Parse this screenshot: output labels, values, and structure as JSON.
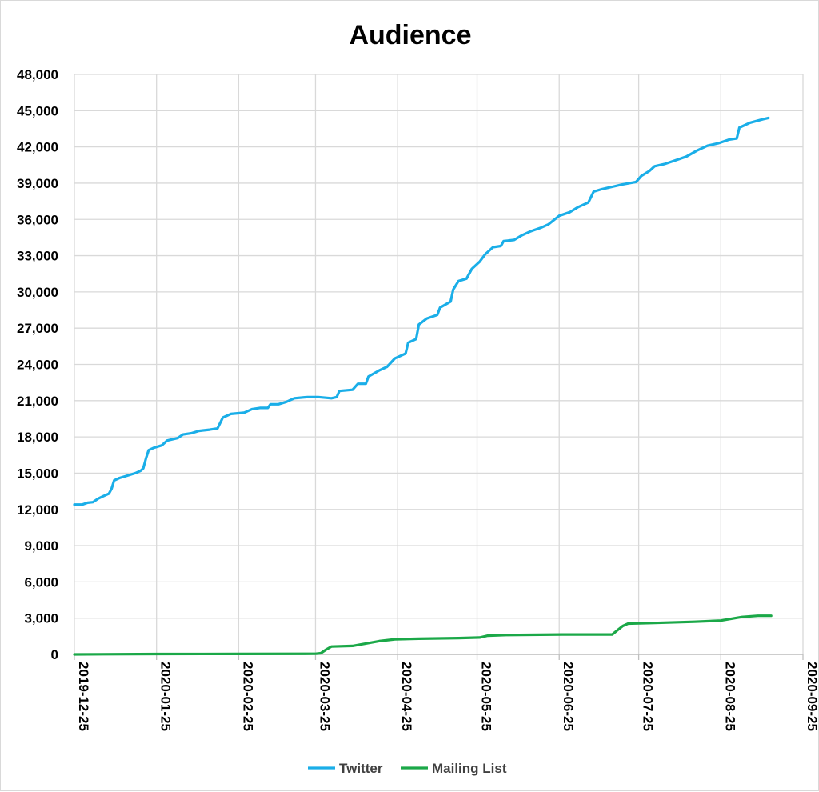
{
  "chart_data": {
    "type": "line",
    "title": "Audience",
    "xlabel": "",
    "ylabel": "",
    "x_tick_labels": [
      "2019-12-25",
      "2020-01-25",
      "2020-02-25",
      "2020-03-25",
      "2020-04-25",
      "2020-05-25",
      "2020-06-25",
      "2020-07-25",
      "2020-08-25",
      "2020-09-25"
    ],
    "y_tick_labels": [
      "0",
      "3,000",
      "6,000",
      "9,000",
      "12,000",
      "15,000",
      "18,000",
      "21,000",
      "24,000",
      "27,000",
      "30,000",
      "33,000",
      "36,000",
      "39,000",
      "42,000",
      "45,000",
      "48,000"
    ],
    "xlim": [
      "2019-12-25",
      "2020-09-25"
    ],
    "ylim": [
      0,
      48000
    ],
    "grid": true,
    "legend_position": "bottom",
    "series": [
      {
        "name": "Twitter",
        "color": "#1aaee8",
        "points": [
          [
            "2019-12-25",
            12400
          ],
          [
            "2019-12-28",
            12400
          ],
          [
            "2019-12-30",
            12550
          ],
          [
            "2020-01-01",
            12600
          ],
          [
            "2020-01-03",
            12900
          ],
          [
            "2020-01-05",
            13100
          ],
          [
            "2020-01-07",
            13300
          ],
          [
            "2020-01-08",
            13700
          ],
          [
            "2020-01-09",
            14400
          ],
          [
            "2020-01-11",
            14600
          ],
          [
            "2020-01-14",
            14800
          ],
          [
            "2020-01-17",
            15000
          ],
          [
            "2020-01-19",
            15200
          ],
          [
            "2020-01-20",
            15400
          ],
          [
            "2020-01-21",
            16200
          ],
          [
            "2020-01-22",
            16900
          ],
          [
            "2020-01-24",
            17100
          ],
          [
            "2020-01-27",
            17300
          ],
          [
            "2020-01-29",
            17700
          ],
          [
            "2020-02-02",
            17900
          ],
          [
            "2020-02-04",
            18200
          ],
          [
            "2020-02-07",
            18300
          ],
          [
            "2020-02-10",
            18500
          ],
          [
            "2020-02-14",
            18600
          ],
          [
            "2020-02-17",
            18700
          ],
          [
            "2020-02-19",
            19600
          ],
          [
            "2020-02-22",
            19900
          ],
          [
            "2020-02-27",
            20000
          ],
          [
            "2020-03-01",
            20300
          ],
          [
            "2020-03-04",
            20400
          ],
          [
            "2020-03-07",
            20400
          ],
          [
            "2020-03-08",
            20700
          ],
          [
            "2020-03-11",
            20700
          ],
          [
            "2020-03-14",
            20900
          ],
          [
            "2020-03-17",
            21200
          ],
          [
            "2020-03-22",
            21300
          ],
          [
            "2020-03-26",
            21300
          ],
          [
            "2020-03-31",
            21200
          ],
          [
            "2020-04-02",
            21300
          ],
          [
            "2020-04-03",
            21800
          ],
          [
            "2020-04-08",
            21900
          ],
          [
            "2020-04-10",
            22400
          ],
          [
            "2020-04-13",
            22400
          ],
          [
            "2020-04-14",
            23000
          ],
          [
            "2020-04-18",
            23500
          ],
          [
            "2020-04-21",
            23800
          ],
          [
            "2020-04-24",
            24500
          ],
          [
            "2020-04-28",
            24900
          ],
          [
            "2020-04-29",
            25800
          ],
          [
            "2020-05-02",
            26100
          ],
          [
            "2020-05-03",
            27300
          ],
          [
            "2020-05-06",
            27800
          ],
          [
            "2020-05-10",
            28100
          ],
          [
            "2020-05-11",
            28700
          ],
          [
            "2020-05-15",
            29200
          ],
          [
            "2020-05-16",
            30200
          ],
          [
            "2020-05-18",
            30900
          ],
          [
            "2020-05-21",
            31100
          ],
          [
            "2020-05-23",
            31900
          ],
          [
            "2020-05-26",
            32500
          ],
          [
            "2020-05-28",
            33100
          ],
          [
            "2020-05-31",
            33700
          ],
          [
            "2020-06-03",
            33800
          ],
          [
            "2020-06-04",
            34200
          ],
          [
            "2020-06-08",
            34300
          ],
          [
            "2020-06-11",
            34700
          ],
          [
            "2020-06-14",
            35000
          ],
          [
            "2020-06-18",
            35300
          ],
          [
            "2020-06-21",
            35600
          ],
          [
            "2020-06-25",
            36300
          ],
          [
            "2020-06-29",
            36600
          ],
          [
            "2020-07-02",
            37000
          ],
          [
            "2020-07-06",
            37400
          ],
          [
            "2020-07-08",
            38300
          ],
          [
            "2020-07-11",
            38500
          ],
          [
            "2020-07-15",
            38700
          ],
          [
            "2020-07-19",
            38900
          ],
          [
            "2020-07-24",
            39100
          ],
          [
            "2020-07-26",
            39600
          ],
          [
            "2020-07-29",
            40000
          ],
          [
            "2020-07-31",
            40400
          ],
          [
            "2020-08-04",
            40600
          ],
          [
            "2020-08-08",
            40900
          ],
          [
            "2020-08-12",
            41200
          ],
          [
            "2020-08-16",
            41700
          ],
          [
            "2020-08-20",
            42100
          ],
          [
            "2020-08-24",
            42300
          ],
          [
            "2020-08-28",
            42600
          ],
          [
            "2020-08-31",
            42700
          ],
          [
            "2020-09-01",
            43600
          ],
          [
            "2020-09-05",
            44000
          ],
          [
            "2020-09-10",
            44300
          ],
          [
            "2020-09-12",
            44400
          ]
        ]
      },
      {
        "name": "Mailing List",
        "color": "#1ba848",
        "points": [
          [
            "2019-12-25",
            0
          ],
          [
            "2020-01-25",
            30
          ],
          [
            "2020-02-25",
            40
          ],
          [
            "2020-03-24",
            50
          ],
          [
            "2020-03-25",
            50
          ],
          [
            "2020-03-27",
            100
          ],
          [
            "2020-03-29",
            400
          ],
          [
            "2020-03-31",
            650
          ],
          [
            "2020-04-08",
            700
          ],
          [
            "2020-04-13",
            900
          ],
          [
            "2020-04-18",
            1100
          ],
          [
            "2020-04-24",
            1250
          ],
          [
            "2020-05-03",
            1300
          ],
          [
            "2020-05-18",
            1350
          ],
          [
            "2020-05-26",
            1400
          ],
          [
            "2020-05-29",
            1550
          ],
          [
            "2020-06-05",
            1600
          ],
          [
            "2020-06-26",
            1650
          ],
          [
            "2020-07-15",
            1650
          ],
          [
            "2020-07-17",
            2000
          ],
          [
            "2020-07-19",
            2350
          ],
          [
            "2020-07-21",
            2550
          ],
          [
            "2020-07-31",
            2600
          ],
          [
            "2020-08-15",
            2700
          ],
          [
            "2020-08-25",
            2800
          ],
          [
            "2020-09-02",
            3100
          ],
          [
            "2020-09-08",
            3200
          ],
          [
            "2020-09-13",
            3200
          ]
        ]
      }
    ]
  }
}
